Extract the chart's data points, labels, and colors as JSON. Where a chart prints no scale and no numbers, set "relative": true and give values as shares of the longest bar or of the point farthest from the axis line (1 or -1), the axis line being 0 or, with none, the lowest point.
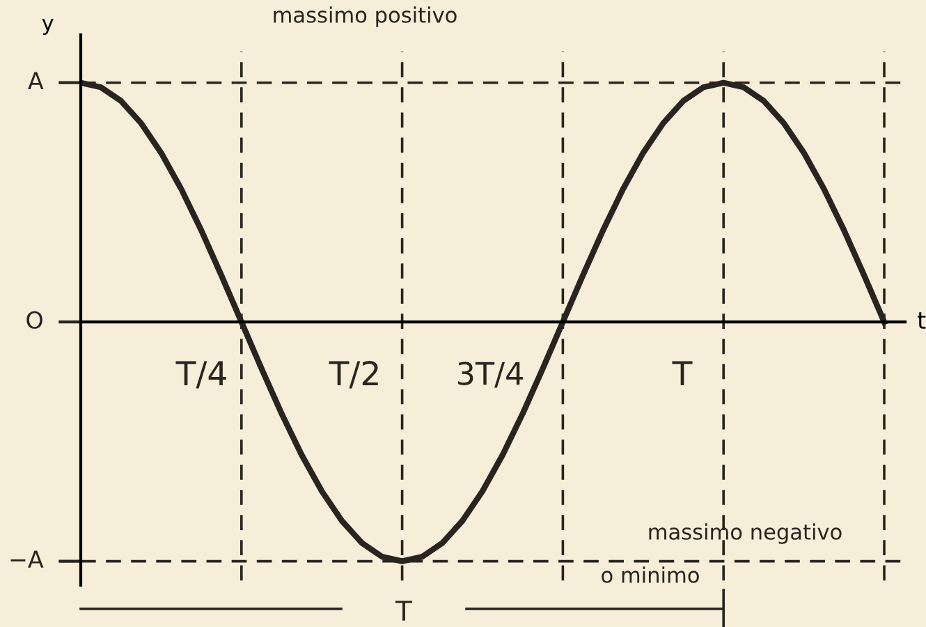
{
  "chart_data": {
    "type": "line",
    "xlabel": "t",
    "ylabel": "y",
    "relative": true,
    "categories": [
      null,
      null,
      null,
      null,
      null,
      null,
      null,
      null,
      null,
      null,
      null,
      null,
      null,
      null,
      null,
      null,
      null,
      null,
      null,
      null,
      null,
      null,
      null,
      null,
      null,
      null,
      null,
      null,
      null,
      null,
      null,
      null,
      null,
      null,
      null,
      null,
      null,
      null,
      null,
      null,
      null
    ],
    "series": [
      {
        "color": "#2a2420",
        "values": [
          1,
          0.981,
          0.924,
          0.831,
          0.707,
          0.556,
          0.383,
          0.195,
          0,
          -0.195,
          -0.383,
          -0.556,
          -0.707,
          -0.831,
          -0.924,
          -0.981,
          -1,
          -0.981,
          -0.924,
          -0.831,
          -0.707,
          -0.556,
          -0.383,
          -0.195,
          0,
          0.195,
          0.383,
          0.556,
          0.707,
          0.831,
          0.924,
          0.981,
          1,
          0.981,
          0.924,
          0.831,
          0.707,
          0.556,
          0.383,
          0.195,
          0
        ]
      }
    ],
    "grid": "x",
    "legend": false,
    "marker": "none",
    "line_style": "solid",
    "annotations": [
      "massimo positivo",
      "T/4",
      "T/2",
      "3T/4",
      "T",
      "massimo negativo",
      "o minimo",
      "T",
      "A",
      "O",
      "−A"
    ]
  }
}
